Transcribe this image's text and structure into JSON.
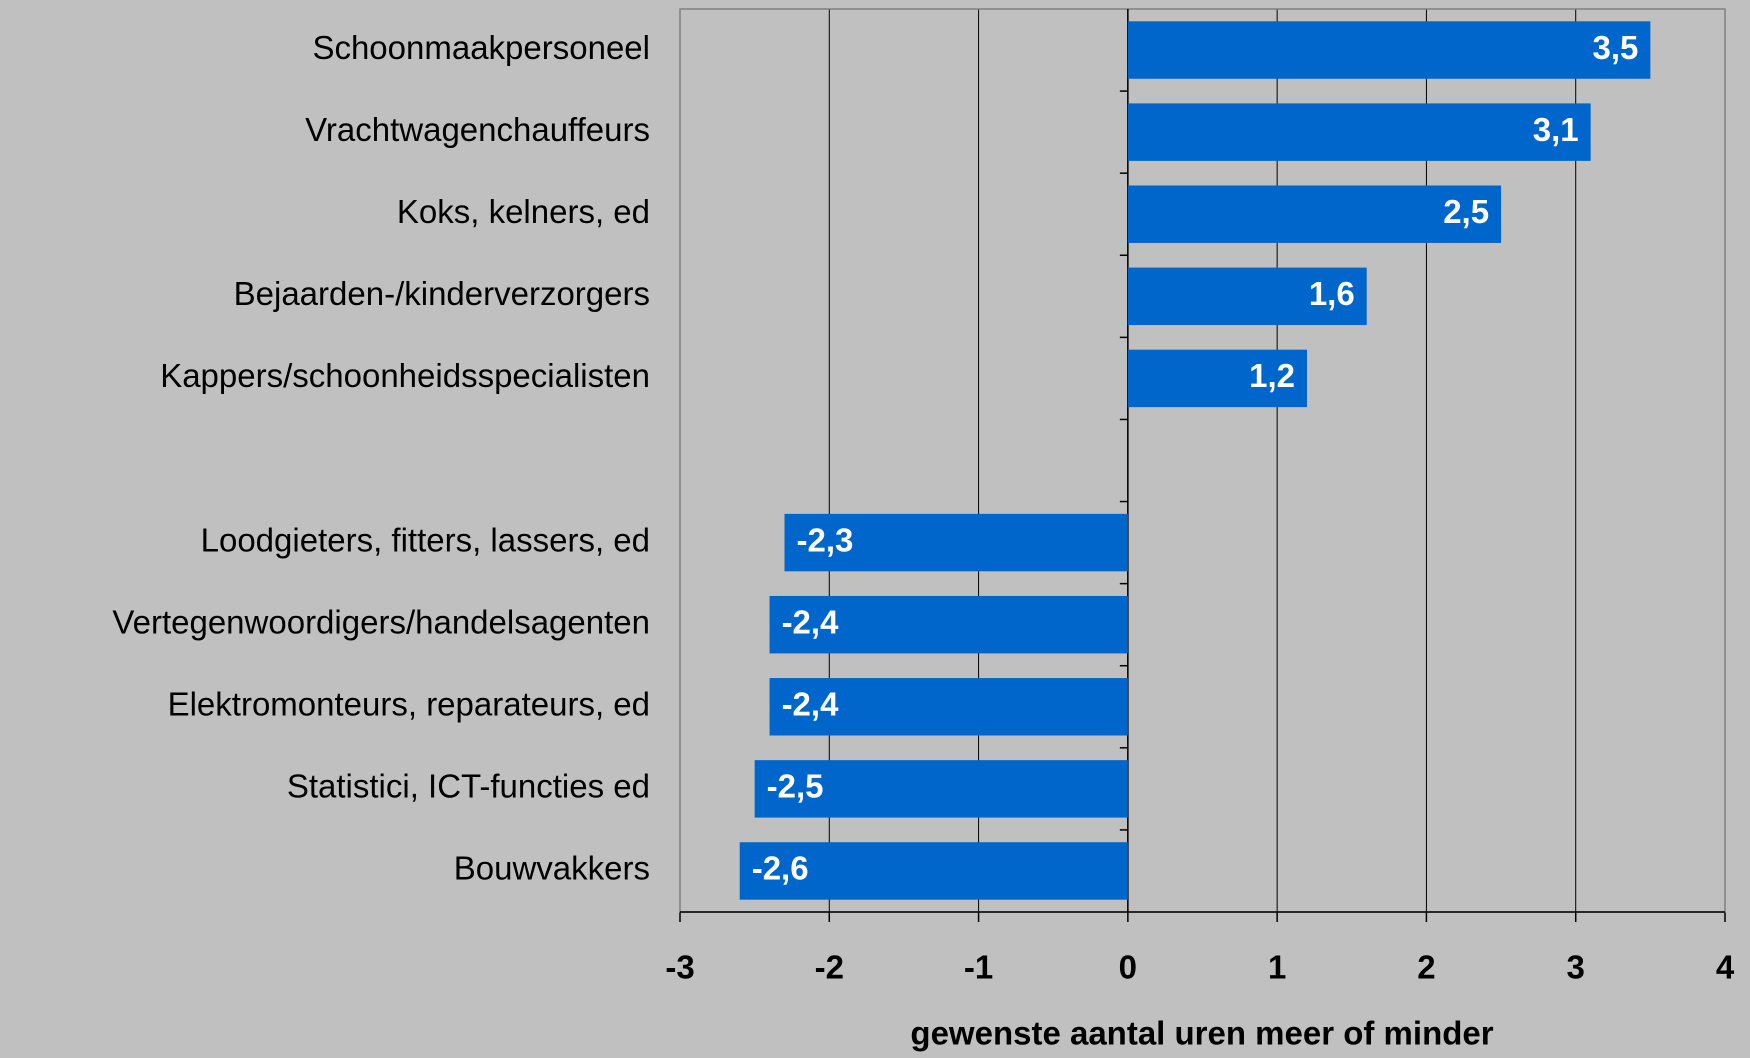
{
  "chart_data": {
    "type": "barh",
    "categories": [
      "Schoonmaakpersoneel",
      "Vrachtwagenchauffeurs",
      "Koks, kelners, ed",
      "Bejaarden-/kinderverzorgers",
      "Kappers/schoonheidsspecialisten",
      null,
      "Loodgieters, fitters, lassers, ed",
      "Vertegenwoordigers/handelsagenten",
      "Elektromonteurs, reparateurs, ed",
      "Statistici, ICT-functies ed",
      "Bouwvakkers"
    ],
    "values": [
      3.5,
      3.1,
      2.5,
      1.6,
      1.2,
      null,
      -2.3,
      -2.4,
      -2.4,
      -2.5,
      -2.6
    ],
    "value_labels": [
      "3,5",
      "3,1",
      "2,5",
      "1,6",
      "1,2",
      null,
      "-2,3",
      "-2,4",
      "-2,4",
      "-2,5",
      "-2,6"
    ],
    "color": "#0066cc",
    "xlim": [
      -3,
      4
    ],
    "xticks": [
      -3,
      -2,
      -1,
      0,
      1,
      2,
      3,
      4
    ],
    "xlabel": "gewenste aantal uren meer of minder",
    "grid": true
  }
}
